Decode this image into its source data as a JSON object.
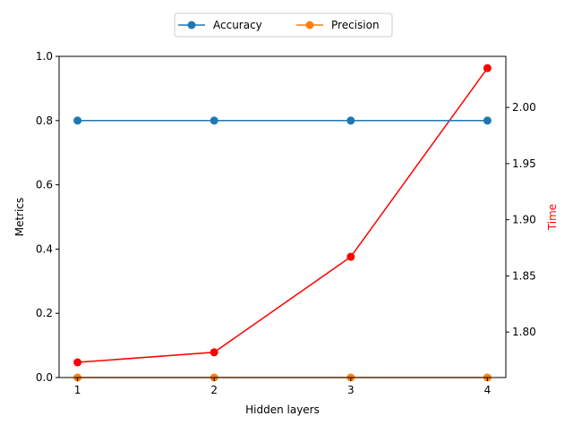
{
  "chart_data": {
    "type": "line",
    "xlabel": "Hidden layers",
    "x": [
      1,
      2,
      3,
      4
    ],
    "x_ticks": [
      "1",
      "2",
      "3",
      "4"
    ],
    "left_axis": {
      "label": "Metrics",
      "ylim": [
        0,
        1
      ],
      "ticks": [
        "0.0",
        "0.2",
        "0.4",
        "0.6",
        "0.8",
        "1.0"
      ]
    },
    "right_axis": {
      "label": "Time",
      "label_color": "#ff0000",
      "ylim": [
        1.7595,
        2.0455
      ],
      "ticks": [
        "1.80",
        "1.85",
        "1.90",
        "1.95",
        "2.00"
      ]
    },
    "series": [
      {
        "name": "Accuracy",
        "axis": "left",
        "color": "#1f77b4",
        "values": [
          0.8,
          0.8,
          0.8,
          0.8
        ]
      },
      {
        "name": "Precision",
        "axis": "left",
        "color": "#ff7f0e",
        "values": [
          0.0,
          0.0,
          0.0,
          0.0
        ]
      },
      {
        "axis": "right",
        "color": "#ff0000",
        "values": [
          1.773,
          1.782,
          1.867,
          2.035
        ]
      }
    ],
    "legend": {
      "placement": "top-center",
      "columns": 2
    },
    "grid": false
  }
}
